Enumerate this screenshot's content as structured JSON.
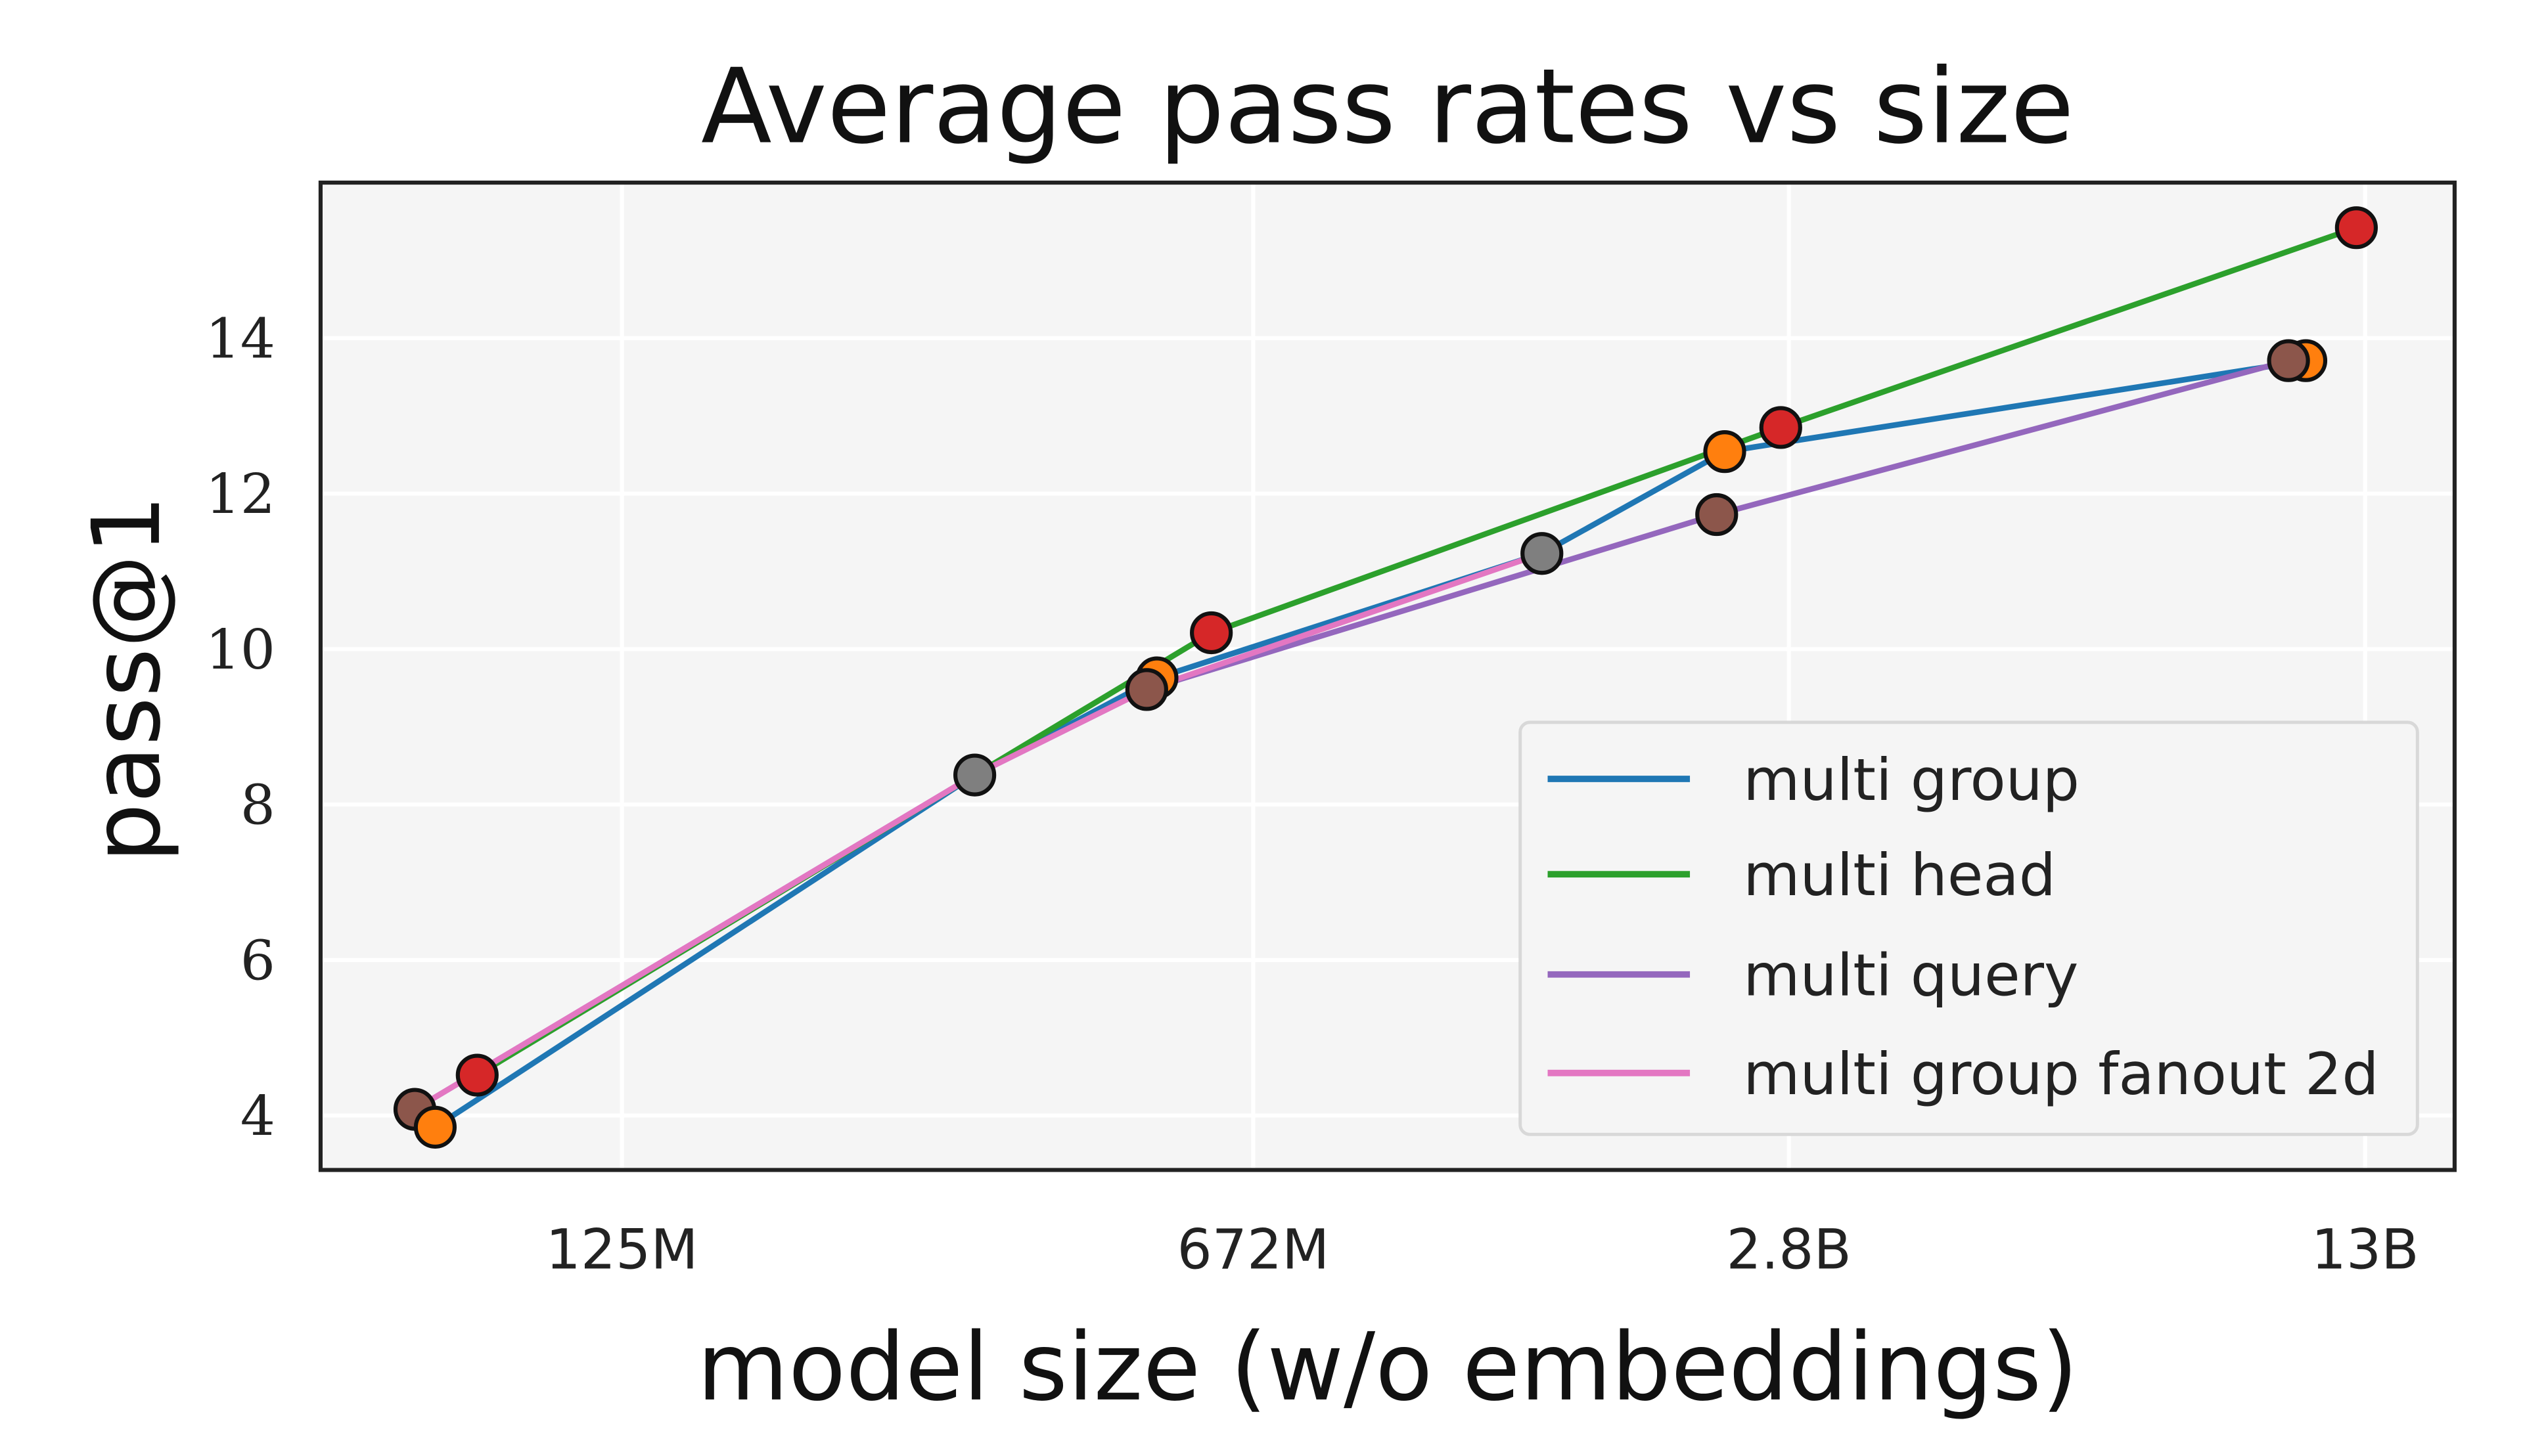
{
  "chart_data": {
    "type": "line",
    "title": "Average pass rates vs size",
    "xlabel": "model size (w/o embeddings)",
    "ylabel": "pass@1",
    "x_scale": "log",
    "x_unit": "parameters (millions)",
    "xlim": [
      56,
      16500
    ],
    "ylim": [
      3.3,
      16.0
    ],
    "x_ticks": [
      {
        "value": 125,
        "label": "125M"
      },
      {
        "value": 672,
        "label": "672M"
      },
      {
        "value": 2800,
        "label": "2.8B"
      },
      {
        "value": 13000,
        "label": "13B"
      }
    ],
    "y_ticks": [
      {
        "value": 4,
        "label": "4"
      },
      {
        "value": 6,
        "label": "6"
      },
      {
        "value": 8,
        "label": "8"
      },
      {
        "value": 10,
        "label": "10"
      },
      {
        "value": 12,
        "label": "12"
      },
      {
        "value": 14,
        "label": "14"
      }
    ],
    "grid": true,
    "legend_position": "lower-right",
    "series": [
      {
        "name": "multi group",
        "color": "#1f77b4",
        "points": [
          [
            76,
            3.85
          ],
          [
            320,
            8.38
          ],
          [
            520,
            9.63
          ],
          [
            1450,
            11.23
          ],
          [
            2360,
            12.54
          ],
          [
            11100,
            13.71
          ]
        ]
      },
      {
        "name": "multi head",
        "color": "#2ca02c",
        "points": [
          [
            85,
            4.52
          ],
          [
            320,
            8.38
          ],
          [
            601,
            10.21
          ],
          [
            2740,
            12.85
          ],
          [
            12700,
            15.42
          ]
        ]
      },
      {
        "name": "multi query",
        "color": "#9467bd",
        "points": [
          [
            72,
            4.08
          ],
          [
            320,
            8.38
          ],
          [
            506,
            9.48
          ],
          [
            2310,
            11.73
          ],
          [
            10600,
            13.71
          ]
        ]
      },
      {
        "name": "multi group fanout 2d",
        "color": "#e377c2",
        "points": [
          [
            72,
            4.08
          ],
          [
            320,
            8.38
          ],
          [
            506,
            9.48
          ],
          [
            1450,
            11.23
          ]
        ]
      }
    ],
    "markers": [
      {
        "x": 72,
        "y": 4.08,
        "color": "#8c564b"
      },
      {
        "x": 76,
        "y": 3.85,
        "color": "#ff7f0e"
      },
      {
        "x": 85,
        "y": 4.52,
        "color": "#d62728"
      },
      {
        "x": 320,
        "y": 8.38,
        "color": "#7f7f7f"
      },
      {
        "x": 520,
        "y": 9.63,
        "color": "#ff7f0e"
      },
      {
        "x": 506,
        "y": 9.48,
        "color": "#8c564b"
      },
      {
        "x": 601,
        "y": 10.21,
        "color": "#d62728"
      },
      {
        "x": 1450,
        "y": 11.23,
        "color": "#7f7f7f"
      },
      {
        "x": 2310,
        "y": 11.73,
        "color": "#8c564b"
      },
      {
        "x": 2360,
        "y": 12.54,
        "color": "#ff7f0e"
      },
      {
        "x": 2740,
        "y": 12.85,
        "color": "#d62728"
      },
      {
        "x": 11100,
        "y": 13.71,
        "color": "#ff7f0e"
      },
      {
        "x": 10600,
        "y": 13.71,
        "color": "#8c564b"
      },
      {
        "x": 12700,
        "y": 15.42,
        "color": "#d62728"
      }
    ]
  }
}
